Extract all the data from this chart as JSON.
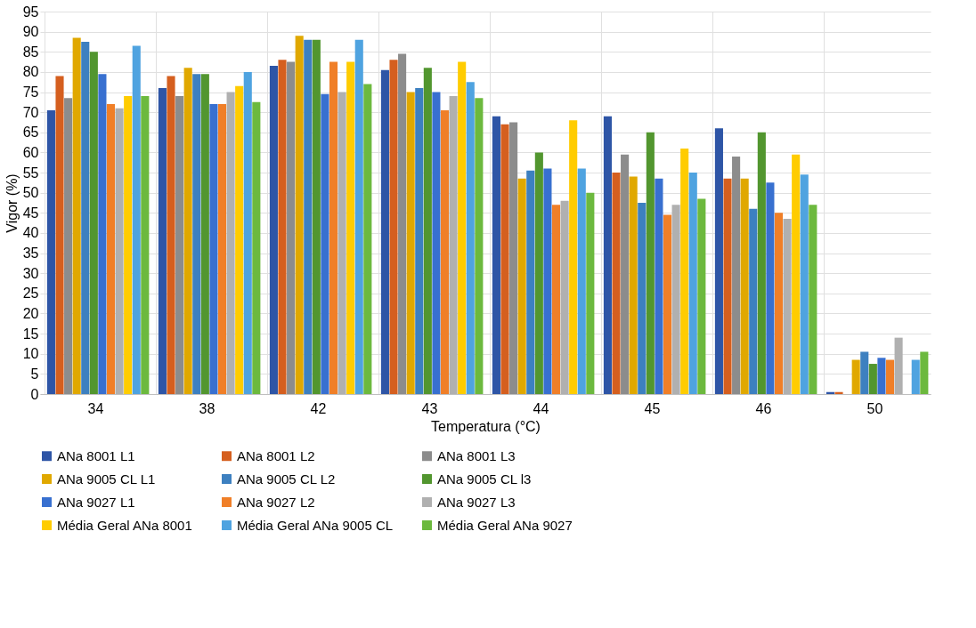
{
  "chart_data": {
    "type": "bar",
    "xlabel": "Temperatura (°C)",
    "ylabel": "Vigor (%)",
    "categories": [
      "34",
      "38",
      "42",
      "43",
      "44",
      "45",
      "46",
      "50"
    ],
    "series": [
      {
        "name": "ANa 8001 L1",
        "color": "#2e55a6",
        "values": [
          70.5,
          76,
          81.5,
          80.5,
          69,
          69,
          66,
          0.5
        ]
      },
      {
        "name": "ANa 8001 L2",
        "color": "#d55f1f",
        "values": [
          79,
          79,
          83,
          83,
          67,
          55,
          53.5,
          0.5
        ]
      },
      {
        "name": "ANa 8001 L3",
        "color": "#8c8c8c",
        "values": [
          73.5,
          74,
          82.5,
          84.5,
          67.5,
          59.5,
          59,
          0
        ]
      },
      {
        "name": "ANa 9005 CL L1",
        "color": "#e0a800",
        "values": [
          88.5,
          81,
          89,
          75,
          53.5,
          54,
          53.5,
          8.5
        ]
      },
      {
        "name": "ANa 9005 CL L2",
        "color": "#3d80c0",
        "values": [
          87.5,
          79.5,
          88,
          76,
          55.5,
          47.5,
          46,
          10.5
        ]
      },
      {
        "name": "ANa 9005 CL l3",
        "color": "#52962f",
        "values": [
          85,
          79.5,
          88,
          81,
          60,
          65,
          65,
          7.5
        ]
      },
      {
        "name": "ANa 9027 L1",
        "color": "#3870d0",
        "values": [
          79.5,
          72,
          74.5,
          75,
          56,
          53.5,
          52.5,
          9
        ]
      },
      {
        "name": "ANa 9027 L2",
        "color": "#f07f28",
        "values": [
          72,
          72,
          82.5,
          70.5,
          47,
          44.5,
          45,
          8.5
        ]
      },
      {
        "name": "ANa 9027 L3",
        "color": "#b0b0b0",
        "values": [
          71,
          75,
          75,
          74,
          48,
          47,
          43.5,
          14
        ]
      },
      {
        "name": "Média Geral ANa 8001",
        "color": "#ffcc00",
        "values": [
          74,
          76.5,
          82.5,
          82.5,
          68,
          61,
          59.5,
          0
        ]
      },
      {
        "name": "Média Geral ANa 9005 CL",
        "color": "#4fa3e0",
        "values": [
          86.5,
          80,
          88,
          77.5,
          56,
          55,
          54.5,
          8.5
        ]
      },
      {
        "name": "Média Geral ANa 9027",
        "color": "#6cb93e",
        "values": [
          74,
          72.5,
          77,
          73.5,
          50,
          48.5,
          47,
          10.5
        ]
      }
    ],
    "ylim": [
      0,
      95
    ],
    "yticks": [
      0,
      5,
      10,
      15,
      20,
      25,
      30,
      35,
      40,
      45,
      50,
      55,
      60,
      65,
      70,
      75,
      80,
      85,
      90,
      95
    ],
    "grid": true,
    "legend": "bottom"
  }
}
